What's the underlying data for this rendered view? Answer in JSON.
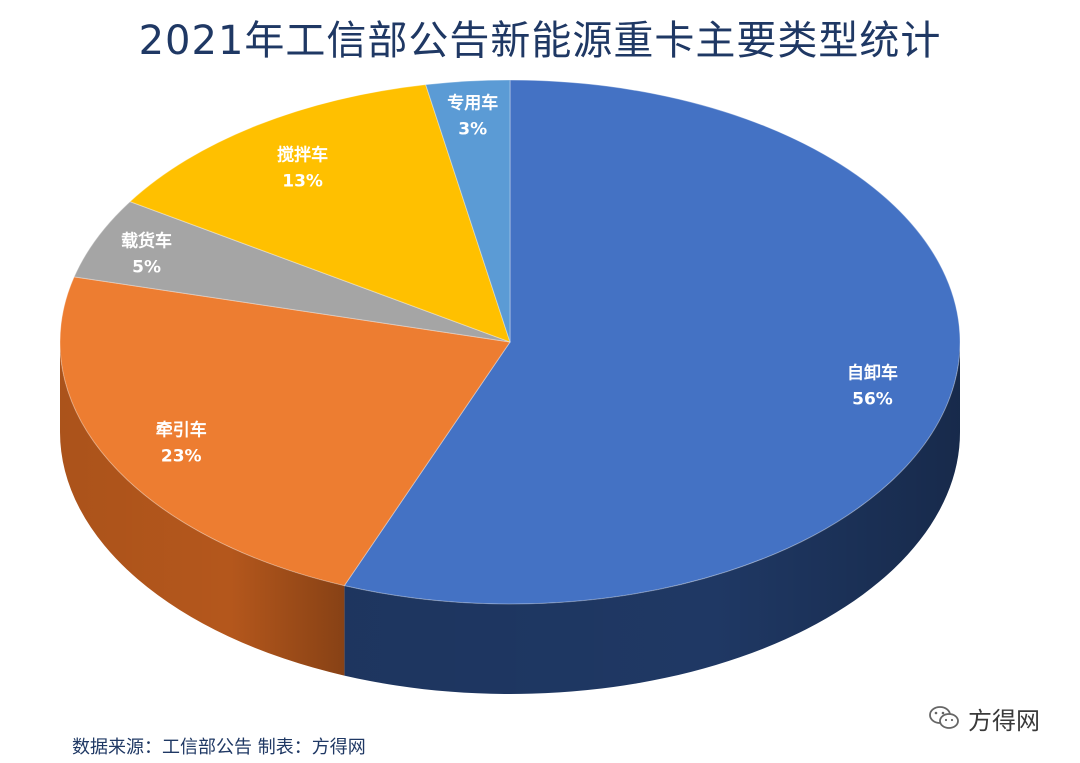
{
  "title": "2021年工信部公告新能源重卡主要类型统计",
  "source_note": "数据来源：工信部公告 制表：方得网",
  "watermark": "方得网",
  "chart_data": {
    "type": "pie",
    "title": "2021年工信部公告新能源重卡主要类型统计",
    "style": "3d",
    "slices": [
      {
        "label": "自卸车",
        "value": 56,
        "display": "56%",
        "color": "#4472C4",
        "side_color": "#1f3864"
      },
      {
        "label": "牵引车",
        "value": 23,
        "display": "23%",
        "color": "#ED7D31",
        "side_color": "#b4571c"
      },
      {
        "label": "载货车",
        "value": 5,
        "display": "5%",
        "color": "#A5A5A5",
        "side_color": "#7a7a7a"
      },
      {
        "label": "搅拌车",
        "value": 13,
        "display": "13%",
        "color": "#FFC000",
        "side_color": "#c99600"
      },
      {
        "label": "专用车",
        "value": 3,
        "display": "3%",
        "color": "#5B9BD5",
        "side_color": "#3d73a8"
      }
    ]
  }
}
